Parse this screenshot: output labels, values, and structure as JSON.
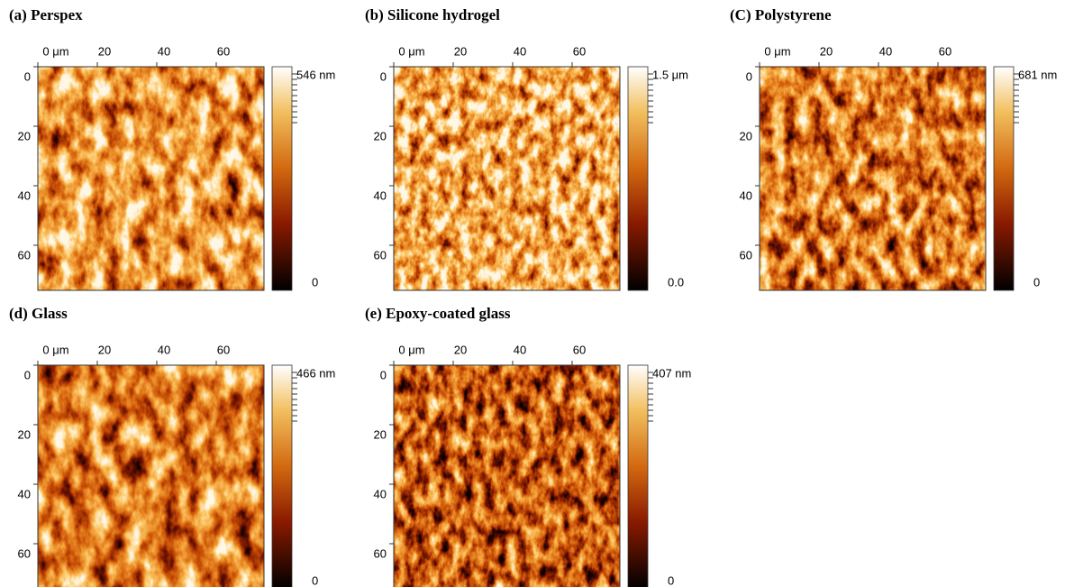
{
  "panels": [
    {
      "title": "(a) Perspex",
      "xticks": [
        "0 μm",
        "20",
        "40",
        "60"
      ],
      "yticks": [
        "0",
        "20",
        "40",
        "60"
      ],
      "scale_max": "546 nm",
      "scale_min": "0"
    },
    {
      "title": "(b) Silicone hydrogel",
      "xticks": [
        "0 μm",
        "20",
        "40",
        "60"
      ],
      "yticks": [
        "0",
        "20",
        "40",
        "60"
      ],
      "scale_max": "1.5 μm",
      "scale_min": "0.0"
    },
    {
      "title": "(C) Polystyrene",
      "xticks": [
        "0 μm",
        "20",
        "40",
        "60"
      ],
      "yticks": [
        "0",
        "20",
        "40",
        "60"
      ],
      "scale_max": "681 nm",
      "scale_min": "0"
    },
    {
      "title": "(d) Glass",
      "xticks": [
        "0 μm",
        "20",
        "40",
        "60"
      ],
      "yticks": [
        "0",
        "20",
        "40",
        "60"
      ],
      "scale_max": "466 nm",
      "scale_min": "0"
    },
    {
      "title": "(e) Epoxy-coated glass",
      "xticks": [
        "0 μm",
        "20",
        "40",
        "60"
      ],
      "yticks": [
        "0",
        "20",
        "40",
        "60"
      ],
      "scale_max": "407 nm",
      "scale_min": "0"
    }
  ]
}
